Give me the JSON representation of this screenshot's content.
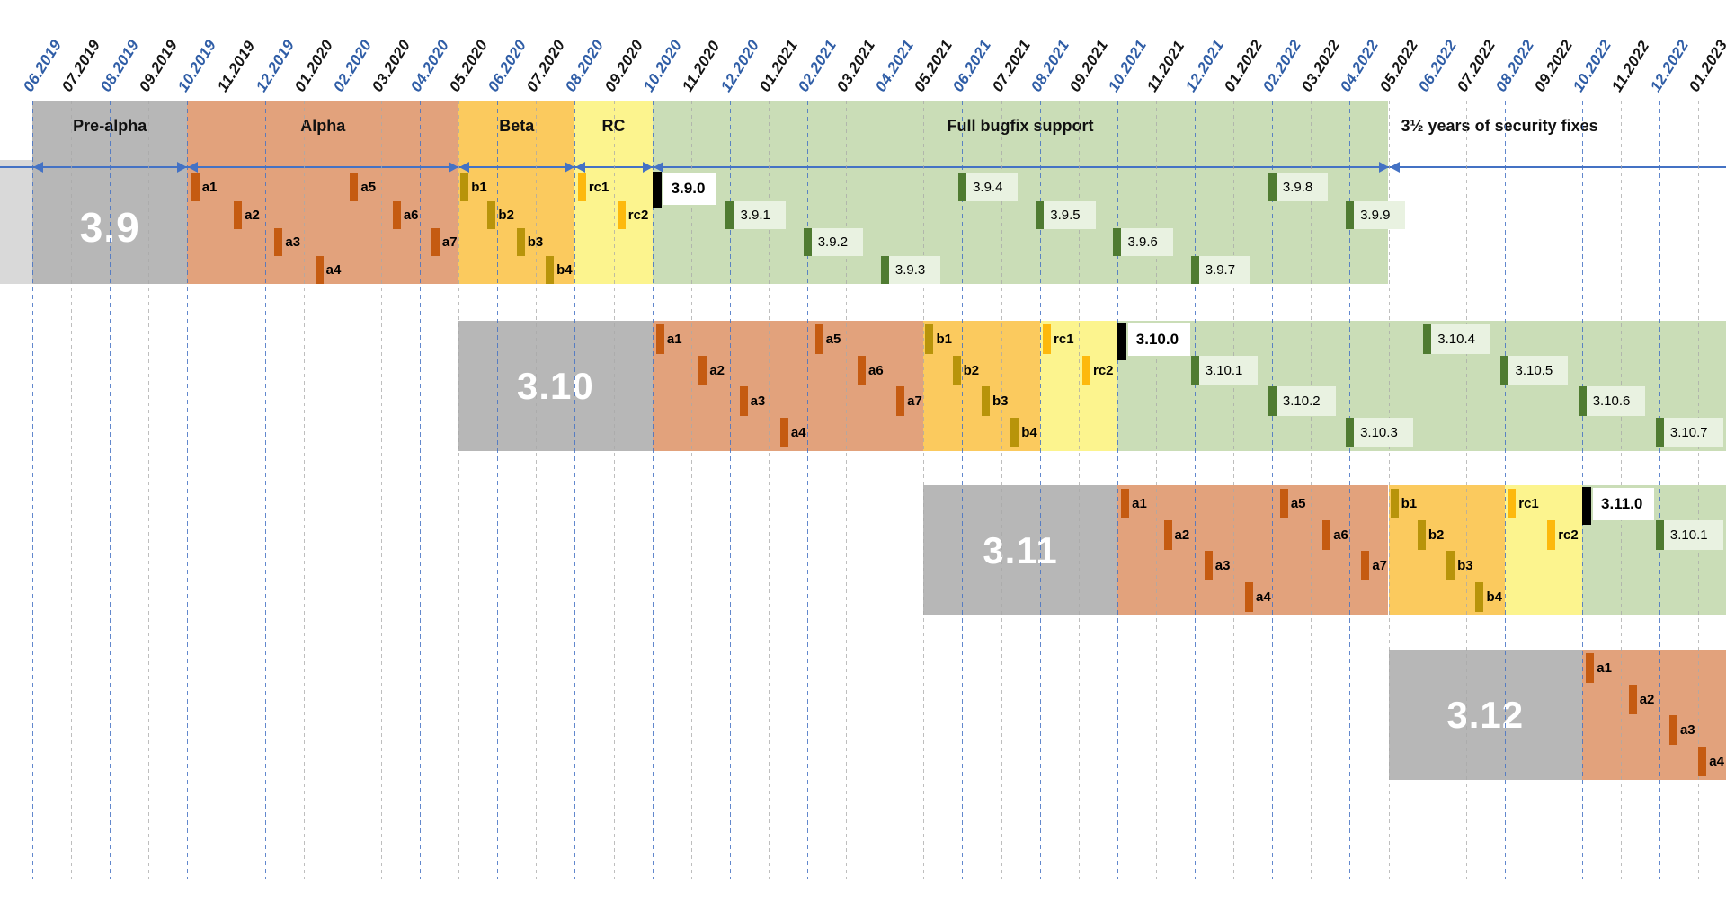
{
  "chart_data": {
    "type": "gantt-timeline",
    "title": "Python release cycle timeline",
    "x_axis": {
      "unit": "month",
      "tick_labels": [
        "06.2019",
        "07.2019",
        "08.2019",
        "09.2019",
        "10.2019",
        "11.2019",
        "12.2019",
        "01.2020",
        "02.2020",
        "03.2020",
        "04.2020",
        "05.2020",
        "06.2020",
        "07.2020",
        "08.2020",
        "09.2020",
        "10.2020",
        "11.2020",
        "12.2020",
        "01.2021",
        "02.2021",
        "03.2021",
        "04.2021",
        "05.2021",
        "06.2021",
        "07.2021",
        "08.2021",
        "09.2021",
        "10.2021",
        "11.2021",
        "12.2021",
        "01.2022",
        "02.2022",
        "03.2022",
        "04.2022",
        "05.2022",
        "06.2022",
        "07.2022",
        "08.2022",
        "09.2022",
        "10.2022",
        "11.2022",
        "12.2022",
        "01.2023"
      ],
      "tick_color_even": "#2f5da6",
      "tick_color_odd": "#141414",
      "grid": "dashed-vertical"
    },
    "phase_labels": {
      "pre_alpha": "Pre-alpha",
      "alpha": "Alpha",
      "beta": "Beta",
      "rc": "RC",
      "bugfix": "Full bugfix support",
      "security": "3½ years of security fixes"
    },
    "releases": [
      {
        "version": "3.9",
        "has_phase_header": true,
        "left_stub": true,
        "phases": {
          "pre_alpha": [
            0,
            4
          ],
          "alpha": [
            4,
            11
          ],
          "beta": [
            11,
            14
          ],
          "rc": [
            14,
            16
          ],
          "bugfix": [
            16,
            35
          ]
        },
        "markers": [
          {
            "label": "a1",
            "kind": "alpha",
            "m": 4.1,
            "r": 0
          },
          {
            "label": "a2",
            "kind": "alpha",
            "m": 5.2,
            "r": 1
          },
          {
            "label": "a3",
            "kind": "alpha",
            "m": 6.25,
            "r": 2
          },
          {
            "label": "a4",
            "kind": "alpha",
            "m": 7.3,
            "r": 3
          },
          {
            "label": "a5",
            "kind": "alpha",
            "m": 8.2,
            "r": 0
          },
          {
            "label": "a6",
            "kind": "alpha",
            "m": 9.3,
            "r": 1
          },
          {
            "label": "a7",
            "kind": "alpha",
            "m": 10.3,
            "r": 2
          },
          {
            "label": "b1",
            "kind": "beta",
            "m": 11.05,
            "r": 0
          },
          {
            "label": "b2",
            "kind": "beta",
            "m": 11.75,
            "r": 1
          },
          {
            "label": "b3",
            "kind": "beta",
            "m": 12.5,
            "r": 2
          },
          {
            "label": "b4",
            "kind": "beta",
            "m": 13.25,
            "r": 3
          },
          {
            "label": "rc1",
            "kind": "rc",
            "m": 14.08,
            "r": 0
          },
          {
            "label": "rc2",
            "kind": "rc",
            "m": 15.1,
            "r": 1
          },
          {
            "label": "3.9.0",
            "kind": "final",
            "m": 16.0,
            "r": 0
          },
          {
            "label": "3.9.1",
            "kind": "bugfix",
            "m": 17.9,
            "r": 1
          },
          {
            "label": "3.9.2",
            "kind": "bugfix",
            "m": 19.9,
            "r": 2
          },
          {
            "label": "3.9.3",
            "kind": "bugfix",
            "m": 21.9,
            "r": 3
          },
          {
            "label": "3.9.4",
            "kind": "bugfix",
            "m": 23.9,
            "r": 0
          },
          {
            "label": "3.9.5",
            "kind": "bugfix",
            "m": 25.9,
            "r": 1
          },
          {
            "label": "3.9.6",
            "kind": "bugfix",
            "m": 27.9,
            "r": 2
          },
          {
            "label": "3.9.7",
            "kind": "bugfix",
            "m": 29.9,
            "r": 3
          },
          {
            "label": "3.9.8",
            "kind": "bugfix",
            "m": 31.9,
            "r": 0
          },
          {
            "label": "3.9.9",
            "kind": "bugfix",
            "m": 33.9,
            "r": 1
          }
        ]
      },
      {
        "version": "3.10",
        "has_phase_header": false,
        "left_stub": false,
        "phases": {
          "pre_alpha": [
            11,
            16
          ],
          "alpha": [
            16,
            23
          ],
          "beta": [
            23,
            26
          ],
          "rc": [
            26,
            28
          ],
          "bugfix": [
            28,
            44
          ]
        },
        "markers": [
          {
            "label": "a1",
            "kind": "alpha",
            "m": 16.1,
            "r": 0
          },
          {
            "label": "a2",
            "kind": "alpha",
            "m": 17.2,
            "r": 1
          },
          {
            "label": "a3",
            "kind": "alpha",
            "m": 18.25,
            "r": 2
          },
          {
            "label": "a4",
            "kind": "alpha",
            "m": 19.3,
            "r": 3
          },
          {
            "label": "a5",
            "kind": "alpha",
            "m": 20.2,
            "r": 0
          },
          {
            "label": "a6",
            "kind": "alpha",
            "m": 21.3,
            "r": 1
          },
          {
            "label": "a7",
            "kind": "alpha",
            "m": 22.3,
            "r": 2
          },
          {
            "label": "b1",
            "kind": "beta",
            "m": 23.05,
            "r": 0
          },
          {
            "label": "b2",
            "kind": "beta",
            "m": 23.75,
            "r": 1
          },
          {
            "label": "b3",
            "kind": "beta",
            "m": 24.5,
            "r": 2
          },
          {
            "label": "b4",
            "kind": "beta",
            "m": 25.25,
            "r": 3
          },
          {
            "label": "rc1",
            "kind": "rc",
            "m": 26.08,
            "r": 0
          },
          {
            "label": "rc2",
            "kind": "rc",
            "m": 27.1,
            "r": 1
          },
          {
            "label": "3.10.0",
            "kind": "final",
            "m": 28.0,
            "r": 0
          },
          {
            "label": "3.10.1",
            "kind": "bugfix",
            "m": 29.9,
            "r": 1
          },
          {
            "label": "3.10.2",
            "kind": "bugfix",
            "m": 31.9,
            "r": 2
          },
          {
            "label": "3.10.3",
            "kind": "bugfix",
            "m": 33.9,
            "r": 3
          },
          {
            "label": "3.10.4",
            "kind": "bugfix",
            "m": 35.9,
            "r": 0
          },
          {
            "label": "3.10.5",
            "kind": "bugfix",
            "m": 37.9,
            "r": 1
          },
          {
            "label": "3.10.6",
            "kind": "bugfix",
            "m": 39.9,
            "r": 2
          },
          {
            "label": "3.10.7",
            "kind": "bugfix",
            "m": 41.9,
            "r": 3
          }
        ]
      },
      {
        "version": "3.11",
        "has_phase_header": false,
        "left_stub": false,
        "phases": {
          "pre_alpha": [
            23,
            28
          ],
          "alpha": [
            28,
            35
          ],
          "beta": [
            35,
            38
          ],
          "rc": [
            38,
            40
          ],
          "bugfix": [
            40,
            44
          ]
        },
        "markers": [
          {
            "label": "a1",
            "kind": "alpha",
            "m": 28.1,
            "r": 0
          },
          {
            "label": "a2",
            "kind": "alpha",
            "m": 29.2,
            "r": 1
          },
          {
            "label": "a3",
            "kind": "alpha",
            "m": 30.25,
            "r": 2
          },
          {
            "label": "a4",
            "kind": "alpha",
            "m": 31.3,
            "r": 3
          },
          {
            "label": "a5",
            "kind": "alpha",
            "m": 32.2,
            "r": 0
          },
          {
            "label": "a6",
            "kind": "alpha",
            "m": 33.3,
            "r": 1
          },
          {
            "label": "a7",
            "kind": "alpha",
            "m": 34.3,
            "r": 2
          },
          {
            "label": "b1",
            "kind": "beta",
            "m": 35.05,
            "r": 0
          },
          {
            "label": "b2",
            "kind": "beta",
            "m": 35.75,
            "r": 1
          },
          {
            "label": "b3",
            "kind": "beta",
            "m": 36.5,
            "r": 2
          },
          {
            "label": "b4",
            "kind": "beta",
            "m": 37.25,
            "r": 3
          },
          {
            "label": "rc1",
            "kind": "rc",
            "m": 38.08,
            "r": 0
          },
          {
            "label": "rc2",
            "kind": "rc",
            "m": 39.1,
            "r": 1
          },
          {
            "label": "3.11.0",
            "kind": "final",
            "m": 40.0,
            "r": 0
          },
          {
            "label": "3.10.1",
            "kind": "bugfix",
            "m": 41.9,
            "r": 1
          }
        ]
      },
      {
        "version": "3.12",
        "has_phase_header": false,
        "left_stub": false,
        "phases": {
          "pre_alpha": [
            35,
            40
          ],
          "alpha": [
            40,
            44
          ]
        },
        "markers": [
          {
            "label": "a1",
            "kind": "alpha",
            "m": 40.1,
            "r": 0
          },
          {
            "label": "a2",
            "kind": "alpha",
            "m": 41.2,
            "r": 1
          },
          {
            "label": "a3",
            "kind": "alpha",
            "m": 42.25,
            "r": 2
          },
          {
            "label": "a4",
            "kind": "alpha",
            "m": 43.0,
            "r": 3
          }
        ]
      }
    ],
    "colors": {
      "pre_alpha_bg": "#b7b7b7",
      "pre_alpha_stub": "#d9d9d9",
      "alpha_bg": "#e2a27c",
      "alpha_bar": "#c55b11",
      "beta_bg": "#fbca5e",
      "beta_bar": "#b8940a",
      "rc_bg": "#fcf48e",
      "rc_bar": "#fdb90d",
      "bugfix_bg": "#caddb7",
      "bugfix_bar": "#4f7b31",
      "bugfix_label_bg": "#e9f2e1",
      "final_bar": "#000000",
      "final_label_bg": "#ffffff",
      "arrow": "#4472c4",
      "version_text": "#ffffff"
    }
  }
}
